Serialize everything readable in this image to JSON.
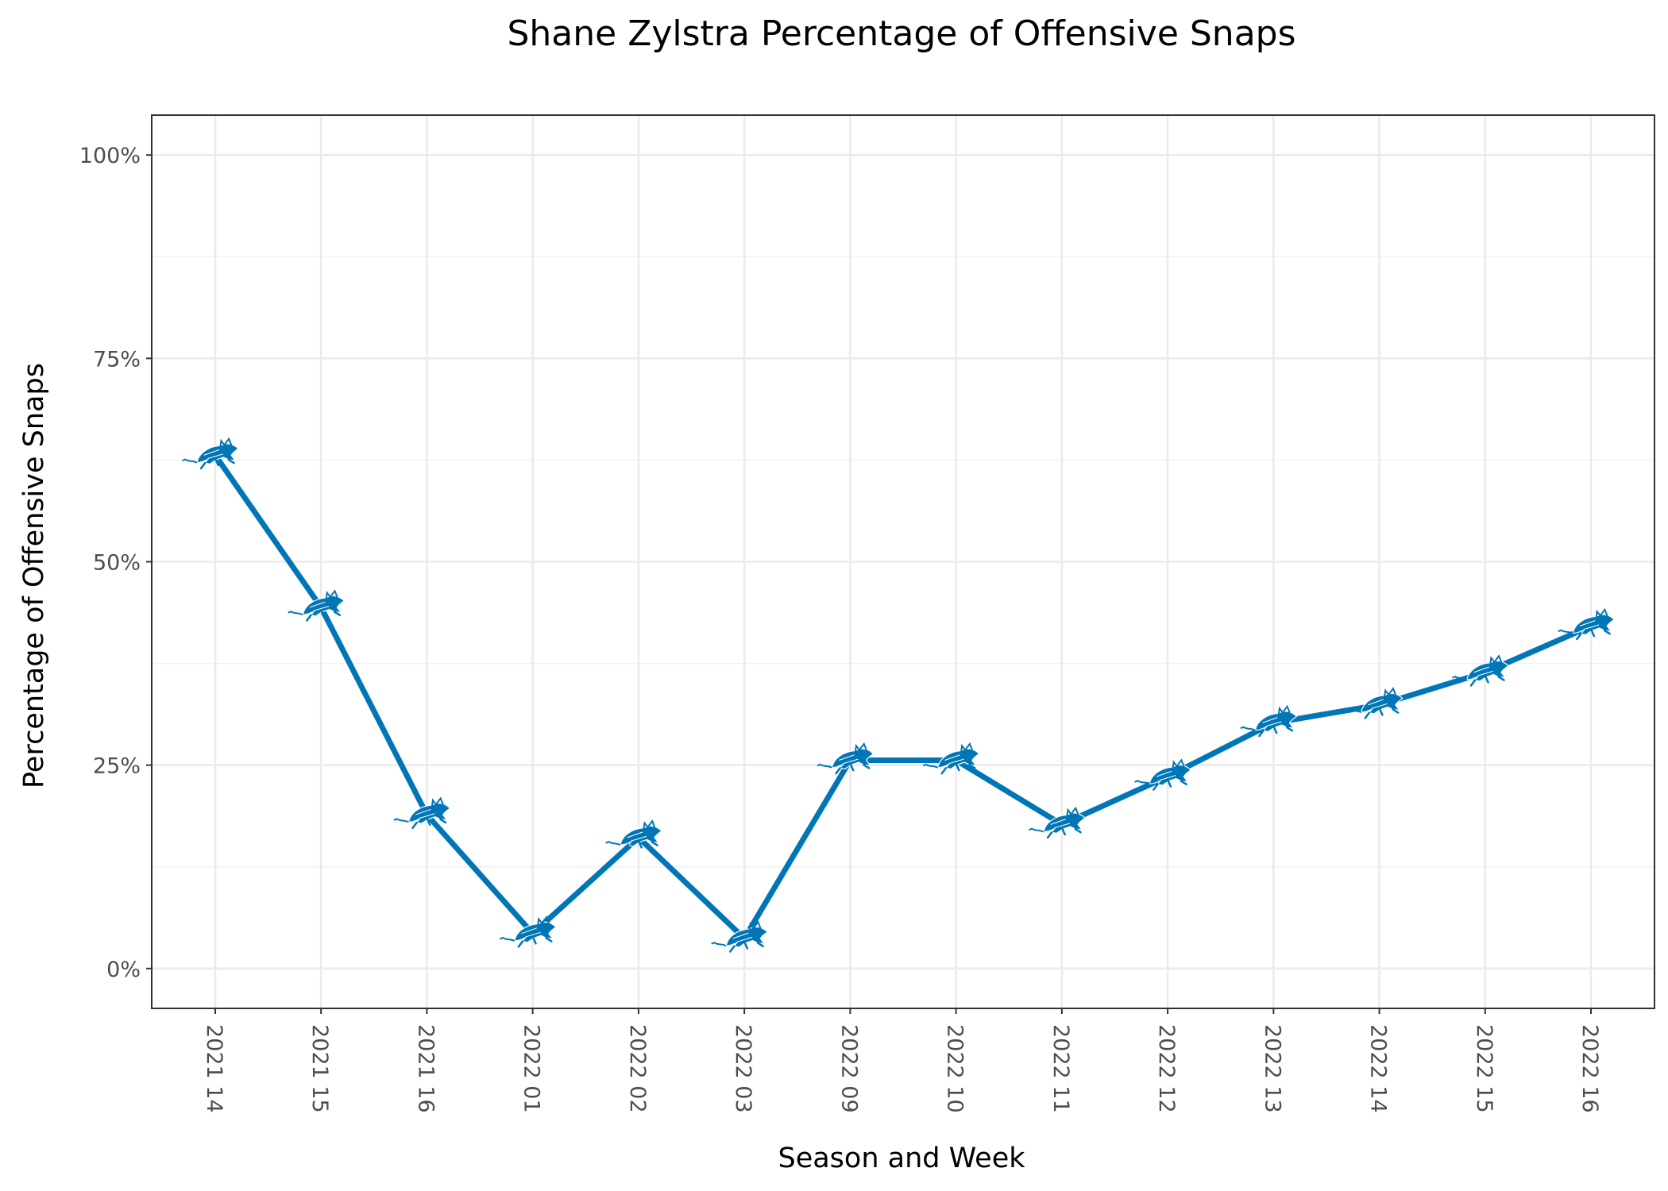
{
  "chart_data": {
    "type": "line",
    "title": "Shane Zylstra Percentage of Offensive Snaps",
    "xlabel": "Season and Week",
    "ylabel": "Percentage of Offensive Snaps",
    "categories": [
      "2021 14",
      "2021 15",
      "2021 16",
      "2022 01",
      "2022 02",
      "2022 03",
      "2022 09",
      "2022 10",
      "2022 11",
      "2022 12",
      "2022 13",
      "2022 14",
      "2022 15",
      "2022 16"
    ],
    "series": [
      {
        "values": [
          63.1,
          44.4,
          18.9,
          4.3,
          16.1,
          3.7,
          25.6,
          25.6,
          17.7,
          23.6,
          30.2,
          32.4,
          36.4,
          42.1
        ],
        "color": "#0076B6",
        "marker_icon": "detroit-lions-logo-icon"
      }
    ],
    "yticks": [
      0,
      25,
      50,
      75,
      100
    ],
    "ytick_labels": [
      "0%",
      "25%",
      "50%",
      "75%",
      "100%"
    ],
    "ylim": [
      -4.9,
      104.9
    ],
    "grid": true,
    "theme": "bw"
  }
}
